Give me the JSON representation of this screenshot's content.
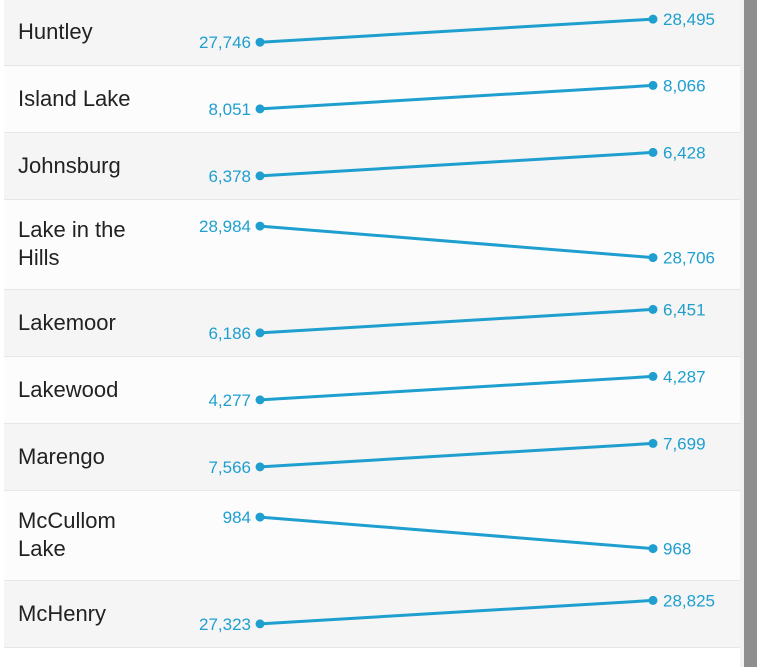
{
  "chart_data": {
    "type": "line",
    "series_color": "#1f9fcf",
    "rows": [
      {
        "name": "Huntley",
        "start": 27746,
        "end": 28495,
        "start_label": "27,746",
        "end_label": "28,495"
      },
      {
        "name": "Island Lake",
        "start": 8051,
        "end": 8066,
        "start_label": "8,051",
        "end_label": "8,066"
      },
      {
        "name": "Johnsburg",
        "start": 6378,
        "end": 6428,
        "start_label": "6,378",
        "end_label": "6,428"
      },
      {
        "name": "Lake in the Hills",
        "start": 28984,
        "end": 28706,
        "start_label": "28,984",
        "end_label": "28,706"
      },
      {
        "name": "Lakemoor",
        "start": 6186,
        "end": 6451,
        "start_label": "6,186",
        "end_label": "6,451"
      },
      {
        "name": "Lakewood",
        "start": 4277,
        "end": 4287,
        "start_label": "4,277",
        "end_label": "4,287"
      },
      {
        "name": "Marengo",
        "start": 7566,
        "end": 7699,
        "start_label": "7,566",
        "end_label": "7,699"
      },
      {
        "name": "McCullom Lake",
        "start": 984,
        "end": 968,
        "start_label": "984",
        "end_label": "968"
      },
      {
        "name": "McHenry",
        "start": 27323,
        "end": 28825,
        "start_label": "27,323",
        "end_label": "28,825"
      }
    ]
  }
}
